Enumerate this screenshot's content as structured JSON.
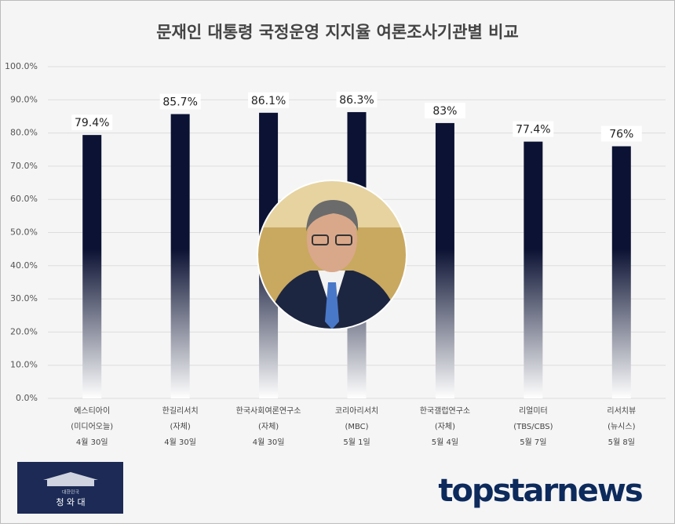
{
  "chart_data": {
    "type": "bar",
    "title": "문재인 대통령 국정운영 지지율 여론조사기관별 비교",
    "categories": [
      "에스티아이",
      "한길리서치",
      "한국사회여론연구소",
      "코리아리서치",
      "한국갤럽연구소",
      "리얼미터",
      "리서치뷰"
    ],
    "category_sources": [
      "(미디어오늘)",
      "(자체)",
      "(자체)",
      "(MBC)",
      "(자체)",
      "(TBS/CBS)",
      "(뉴시스)"
    ],
    "category_dates": [
      "4월 30일",
      "4월 30일",
      "4월 30일",
      "5월 1일",
      "5월 4일",
      "5월 7일",
      "5월 8일"
    ],
    "values": [
      79.4,
      85.7,
      86.1,
      86.3,
      83,
      77.4,
      76
    ],
    "value_labels": [
      "79.4%",
      "85.7%",
      "86.1%",
      "86.3%",
      "83%",
      "77.4%",
      "76%"
    ],
    "color": "#0b1233",
    "ylim": [
      0,
      100
    ],
    "yticks": [
      {
        "value": 0,
        "label": "0.0%"
      },
      {
        "value": 10,
        "label": "10.0%"
      },
      {
        "value": 20,
        "label": "20.0%"
      },
      {
        "value": 30,
        "label": "30.0%"
      },
      {
        "value": 40,
        "label": "40.0%"
      },
      {
        "value": 50,
        "label": "50.0%"
      },
      {
        "value": 60,
        "label": "60.0%"
      },
      {
        "value": 70,
        "label": "70.0%"
      },
      {
        "value": 80,
        "label": "80.0%"
      },
      {
        "value": 90,
        "label": "90.0%"
      },
      {
        "value": 100,
        "label": "100.0%"
      }
    ],
    "grid": true
  },
  "logos": {
    "cheongwadae_small": "대한민국",
    "cheongwadae": "청 와 대",
    "publisher": "topstarnews"
  }
}
